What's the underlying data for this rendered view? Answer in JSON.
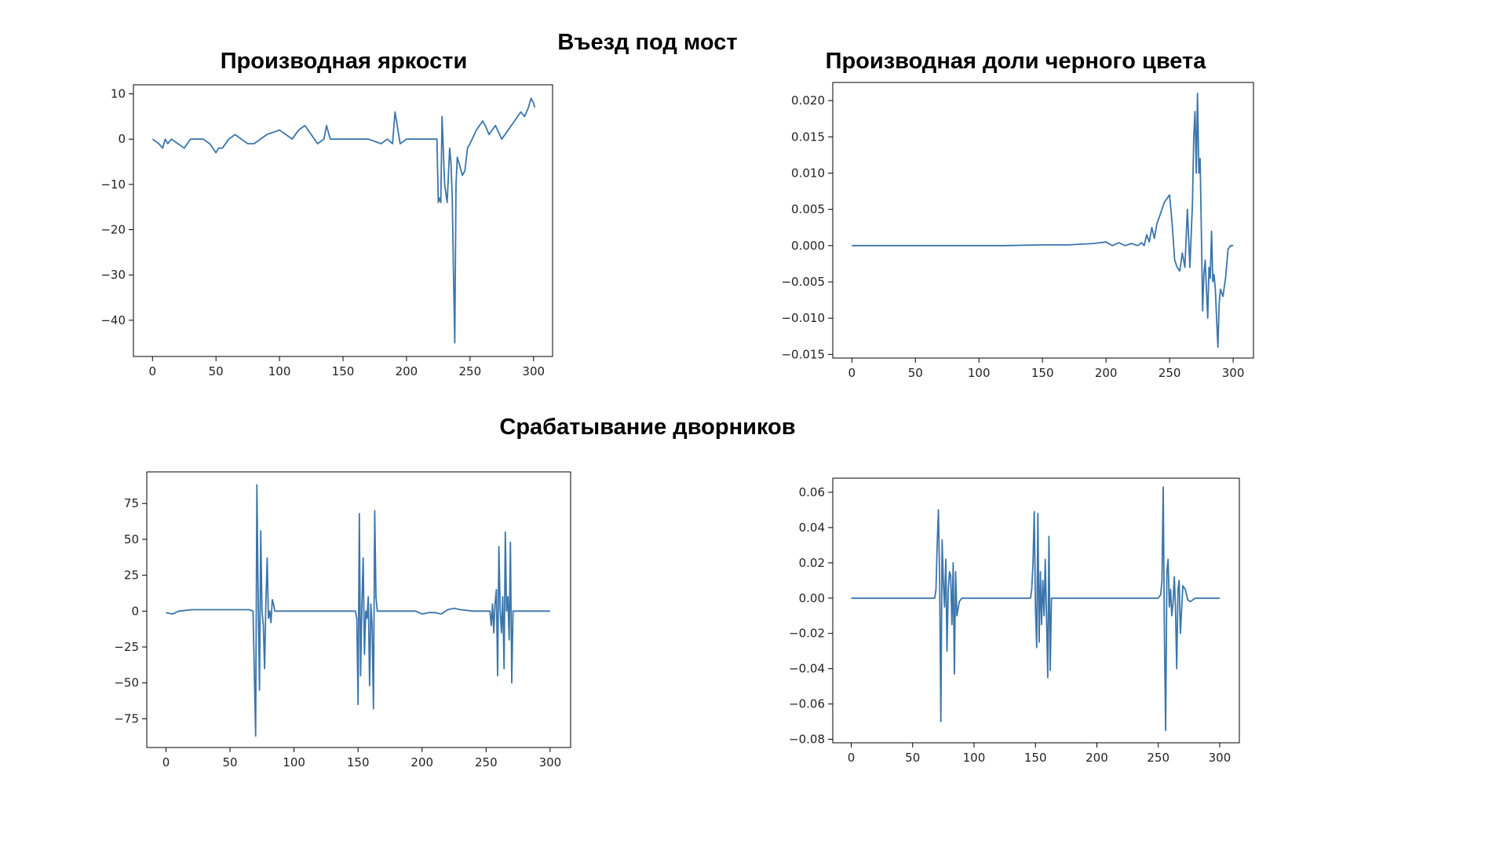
{
  "headings": {
    "section1": "Въезд под мост",
    "section2": "Срабатывание дворников"
  },
  "colors": {
    "line": "#3a75ab",
    "axis": "#000000",
    "tick_text": "#222222"
  },
  "chart_data": [
    {
      "id": "tl",
      "type": "line",
      "title": "Производная яркости",
      "xlim": [
        -15,
        315
      ],
      "ylim": [
        -48,
        12
      ],
      "xticks": [
        0,
        50,
        100,
        150,
        200,
        250,
        300
      ],
      "yticks": [
        10,
        0,
        -10,
        -20,
        -30,
        -40
      ],
      "ytick_labels": [
        "10",
        "0",
        "−10",
        "−20",
        "−30",
        "−40"
      ],
      "series": [
        {
          "x": [
            0,
            5,
            8,
            10,
            12,
            15,
            20,
            25,
            30,
            40,
            45,
            50,
            52,
            55,
            60,
            65,
            70,
            75,
            80,
            90,
            100,
            105,
            110,
            115,
            120,
            125,
            130,
            135,
            137,
            140,
            150,
            160,
            170,
            180,
            185,
            189,
            191,
            195,
            200,
            205,
            210,
            215,
            220,
            224,
            225,
            226,
            227,
            228,
            230,
            231,
            232,
            234,
            235,
            236,
            237,
            238,
            239,
            240,
            242,
            244,
            246,
            248,
            250,
            255,
            260,
            262,
            265,
            270,
            275,
            280,
            285,
            290,
            293,
            296,
            298,
            300,
            301
          ],
          "y": [
            0,
            -1,
            -2,
            0,
            -1,
            0,
            -1,
            -2,
            0,
            0,
            -1,
            -3,
            -2,
            -2,
            0,
            1,
            0,
            -1,
            -1,
            1,
            2,
            1,
            0,
            2,
            3,
            1,
            -1,
            0,
            3,
            0,
            0,
            0,
            0,
            -1,
            0,
            -1,
            6,
            -1,
            0,
            0,
            0,
            0,
            0,
            0,
            -14,
            -13,
            -14,
            5,
            -10,
            -12,
            -14,
            -2,
            -5,
            -13,
            -30,
            -45,
            -10,
            -4,
            -6,
            -8,
            -7,
            -2,
            -1,
            2,
            4,
            3,
            1,
            3,
            0,
            2,
            4,
            6,
            5,
            7,
            9,
            8,
            7
          ]
        }
      ]
    },
    {
      "id": "tr",
      "type": "line",
      "title": "Производная доли черного цвета",
      "xlim": [
        -15,
        316
      ],
      "ylim": [
        -0.0155,
        0.0225
      ],
      "xticks": [
        0,
        50,
        100,
        150,
        200,
        250,
        300
      ],
      "yticks": [
        0.02,
        0.015,
        0.01,
        0.005,
        0.0,
        -0.005,
        -0.01,
        -0.015
      ],
      "ytick_labels": [
        "0.020",
        "0.015",
        "0.010",
        "0.005",
        "0.000",
        "−0.005",
        "−0.010",
        "−0.015"
      ],
      "series": [
        {
          "x": [
            0,
            20,
            40,
            60,
            80,
            100,
            120,
            150,
            170,
            190,
            200,
            205,
            210,
            215,
            220,
            225,
            228,
            230,
            232,
            234,
            236,
            238,
            240,
            242,
            244,
            246,
            248,
            250,
            252,
            254,
            256,
            258,
            260,
            262,
            264,
            266,
            268,
            269,
            270,
            271,
            272,
            273,
            274,
            275,
            276,
            277,
            278,
            279,
            280,
            281,
            282,
            283,
            284,
            285,
            286,
            287,
            288,
            289,
            290,
            292,
            294,
            296,
            298,
            300
          ],
          "y": [
            0,
            0,
            0,
            0,
            0,
            0,
            0,
            0.0001,
            0.0001,
            0.0003,
            0.0005,
            0,
            0.0004,
            0,
            0.0003,
            0,
            0.0004,
            0,
            0.0015,
            0.0005,
            0.0025,
            0.001,
            0.003,
            0.004,
            0.005,
            0.006,
            0.0065,
            0.007,
            0.003,
            -0.002,
            -0.003,
            -0.0035,
            -0.001,
            -0.003,
            0.005,
            -0.003,
            0.006,
            0.015,
            0.0185,
            0.01,
            0.021,
            0.01,
            0.012,
            0.002,
            -0.009,
            -0.004,
            -0.002,
            -0.006,
            -0.01,
            -0.003,
            -0.0045,
            0.002,
            -0.005,
            -0.004,
            -0.006,
            -0.01,
            -0.014,
            -0.008,
            -0.006,
            -0.007,
            -0.0045,
            -0.0005,
            0,
            0
          ]
        }
      ]
    },
    {
      "id": "bl",
      "type": "line",
      "title": "",
      "xlim": [
        -15,
        316
      ],
      "ylim": [
        -95,
        97
      ],
      "xticks": [
        0,
        50,
        100,
        150,
        200,
        250,
        300
      ],
      "yticks": [
        75,
        50,
        25,
        0,
        -25,
        -50,
        -75
      ],
      "ytick_labels": [
        "75",
        "50",
        "25",
        "0",
        "−25",
        "−50",
        "−75"
      ],
      "series": [
        {
          "x": [
            0,
            5,
            10,
            20,
            30,
            40,
            50,
            60,
            65,
            68,
            70,
            71,
            72,
            73,
            74,
            75,
            76,
            77,
            78,
            79,
            80,
            81,
            82,
            83,
            84,
            85,
            87,
            90,
            100,
            110,
            130,
            140,
            148,
            149,
            150,
            151,
            152,
            153,
            154,
            155,
            156,
            157,
            158,
            159,
            160,
            161,
            162,
            163,
            164,
            165,
            166,
            168,
            170,
            180,
            190,
            195,
            200,
            205,
            210,
            215,
            220,
            225,
            230,
            240,
            250,
            253,
            254,
            255,
            256,
            257,
            258,
            259,
            260,
            261,
            262,
            263,
            264,
            265,
            266,
            267,
            268,
            269,
            270,
            271,
            272,
            274,
            280,
            290,
            300
          ],
          "y": [
            -1,
            -2,
            0,
            1,
            1,
            1,
            1,
            1,
            1,
            0,
            -87,
            88,
            10,
            -55,
            56,
            0,
            -10,
            -40,
            5,
            37,
            -5,
            0,
            -8,
            8,
            5,
            0,
            0,
            0,
            0,
            0,
            0,
            0,
            0,
            -5,
            -65,
            68,
            -45,
            5,
            37,
            -30,
            0,
            -5,
            10,
            -52,
            5,
            -10,
            -68,
            70,
            10,
            0,
            0,
            0,
            0,
            0,
            0,
            0,
            -2,
            -1,
            -1,
            -2,
            1,
            2,
            1,
            0,
            0,
            0,
            -10,
            5,
            -15,
            5,
            15,
            -45,
            45,
            0,
            -15,
            10,
            -40,
            55,
            0,
            10,
            -20,
            48,
            -50,
            0,
            0,
            0,
            0,
            0,
            0
          ]
        }
      ]
    },
    {
      "id": "br",
      "type": "line",
      "title": "",
      "xlim": [
        -15,
        316
      ],
      "ylim": [
        -0.082,
        0.068
      ],
      "xticks": [
        0,
        50,
        100,
        150,
        200,
        250,
        300
      ],
      "yticks": [
        0.06,
        0.04,
        0.02,
        0.0,
        -0.02,
        -0.04,
        -0.06,
        -0.08
      ],
      "ytick_labels": [
        "0.06",
        "0.04",
        "0.02",
        "0.00",
        "−0.02",
        "−0.04",
        "−0.06",
        "−0.08"
      ],
      "series": [
        {
          "x": [
            0,
            20,
            40,
            60,
            68,
            69,
            70,
            71,
            72,
            73,
            74,
            75,
            76,
            77,
            78,
            79,
            80,
            81,
            82,
            83,
            84,
            85,
            86,
            88,
            90,
            100,
            120,
            140,
            145,
            146,
            147,
            148,
            149,
            150,
            151,
            152,
            153,
            154,
            155,
            156,
            157,
            158,
            159,
            160,
            161,
            162,
            163,
            164,
            166,
            170,
            200,
            240,
            250,
            252,
            253,
            254,
            255,
            256,
            257,
            258,
            259,
            260,
            261,
            262,
            263,
            264,
            265,
            266,
            267,
            268,
            270,
            272,
            274,
            276,
            280,
            290,
            300
          ],
          "y": [
            0,
            0,
            0,
            0,
            0,
            0.005,
            0.03,
            0.05,
            0.01,
            -0.07,
            0.033,
            0.01,
            -0.005,
            0.022,
            -0.03,
            0.005,
            0.015,
            0.013,
            -0.015,
            0.02,
            -0.043,
            0.015,
            -0.01,
            -0.002,
            0,
            0,
            0,
            0,
            0,
            0,
            0.005,
            0.02,
            0.049,
            -0.005,
            -0.028,
            0.048,
            -0.025,
            0.015,
            -0.015,
            0.01,
            -0.01,
            0.022,
            -0.01,
            -0.045,
            0.035,
            -0.041,
            0,
            0,
            0,
            0,
            0,
            0,
            0,
            0.002,
            0.01,
            0.063,
            -0.02,
            -0.075,
            0.015,
            0.022,
            -0.005,
            0.005,
            -0.01,
            -0.003,
            0.012,
            -0.005,
            -0.04,
            0.005,
            0.01,
            -0.02,
            0.007,
            0.005,
            -0.001,
            -0.002,
            0,
            0,
            0
          ]
        }
      ]
    }
  ]
}
